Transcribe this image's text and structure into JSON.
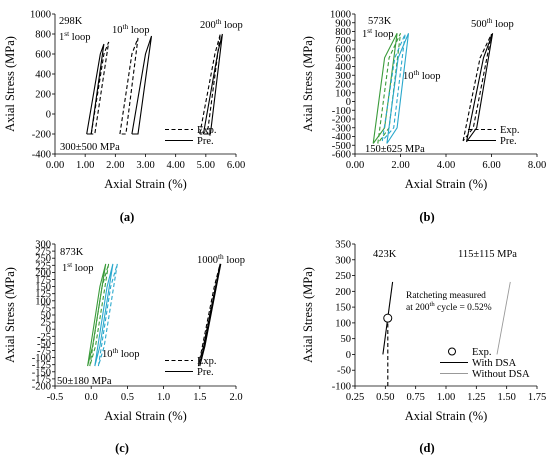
{
  "chart_data": [
    {
      "type": "line",
      "panel_label": "(a)",
      "temperature": "298K",
      "loading": "300±500 MPa",
      "xlabel": "Axial Strain (%)",
      "ylabel": "Axial Stress (MPa)",
      "xlim": [
        0,
        6
      ],
      "ylim": [
        -400,
        1000
      ],
      "xticks": [
        "0.00",
        "1.00",
        "2.00",
        "3.00",
        "4.00",
        "5.00",
        "6.00"
      ],
      "yticks": [
        "-400",
        "-200",
        "0",
        "200",
        "400",
        "600",
        "800",
        "1000"
      ],
      "loop_labels": [
        {
          "base": "1",
          "sup": "st",
          "rest": " loop"
        },
        {
          "base": "10",
          "sup": "th",
          "rest": " loop"
        },
        {
          "base": "200",
          "sup": "th",
          "rest": " loop"
        }
      ],
      "legend": [
        {
          "label": "Exp.",
          "style": "dashed"
        },
        {
          "label": "Pre.",
          "style": "solid"
        }
      ],
      "series": [
        {
          "style": "solid",
          "color": "#000000",
          "x": [
            1.05,
            1.5,
            1.62,
            1.2,
            1.05
          ],
          "y": [
            -200,
            600,
            700,
            -200,
            -200
          ]
        },
        {
          "style": "dashed",
          "color": "#000000",
          "x": [
            1.2,
            1.62,
            1.78,
            1.32,
            1.2
          ],
          "y": [
            -200,
            600,
            720,
            -200,
            -200
          ]
        },
        {
          "style": "dashed",
          "color": "#000000",
          "x": [
            2.15,
            2.55,
            2.75,
            2.35,
            2.15
          ],
          "y": [
            -200,
            600,
            760,
            -200,
            -200
          ]
        },
        {
          "style": "solid",
          "color": "#000000",
          "x": [
            2.55,
            3.0,
            3.2,
            2.75,
            2.55
          ],
          "y": [
            -200,
            600,
            780,
            -200,
            -200
          ]
        },
        {
          "style": "dashed",
          "color": "#000000",
          "x": [
            4.8,
            5.3,
            5.48,
            5.05,
            4.8
          ],
          "y": [
            -200,
            600,
            800,
            -200,
            -200
          ]
        },
        {
          "style": "solid",
          "color": "#000000",
          "x": [
            4.92,
            5.4,
            5.55,
            5.15,
            4.92
          ],
          "y": [
            -200,
            620,
            800,
            -200,
            -200
          ]
        }
      ]
    },
    {
      "type": "line",
      "panel_label": "(b)",
      "temperature": "573K",
      "loading": "150±625 MPa",
      "xlabel": "Axial Strain (%)",
      "ylabel": "Axial Stress (MPa)",
      "xlim": [
        0,
        8
      ],
      "ylim": [
        -600,
        1000
      ],
      "xticks": [
        "0.00",
        "2.00",
        "4.00",
        "6.00",
        "8.00"
      ],
      "yticks": [
        "-600",
        "-500",
        "-400",
        "-300",
        "-200",
        "-100",
        "0",
        "100",
        "200",
        "300",
        "400",
        "500",
        "600",
        "700",
        "800",
        "900",
        "1000"
      ],
      "loop_labels": [
        {
          "base": "1",
          "sup": "st",
          "rest": " loop"
        },
        {
          "base": "10",
          "sup": "th",
          "rest": " loop"
        },
        {
          "base": "500",
          "sup": "th",
          "rest": " loop"
        }
      ],
      "legend": [
        {
          "label": "Exp.",
          "style": "dashed"
        },
        {
          "label": "Pre.",
          "style": "solid"
        }
      ],
      "series": [
        {
          "style": "solid",
          "color": "#3a9b3a",
          "x": [
            0.8,
            1.3,
            1.85,
            1.3,
            0.8
          ],
          "y": [
            -480,
            500,
            780,
            -300,
            -480
          ]
        },
        {
          "style": "dashed",
          "color": "#3a9b3a",
          "x": [
            1.0,
            1.5,
            2.0,
            1.5,
            1.0
          ],
          "y": [
            -480,
            500,
            780,
            -300,
            -480
          ]
        },
        {
          "style": "solid",
          "color": "#29a8cc",
          "x": [
            1.4,
            1.9,
            2.35,
            1.85,
            1.4
          ],
          "y": [
            -480,
            500,
            780,
            -300,
            -480
          ]
        },
        {
          "style": "dashed",
          "color": "#29a8cc",
          "x": [
            1.2,
            1.75,
            2.2,
            1.7,
            1.2
          ],
          "y": [
            -450,
            500,
            770,
            -300,
            -450
          ]
        },
        {
          "style": "dashed",
          "color": "#000000",
          "x": [
            4.75,
            5.5,
            6.0,
            5.2,
            4.75
          ],
          "y": [
            -450,
            500,
            770,
            -300,
            -450
          ]
        },
        {
          "style": "solid",
          "color": "#000000",
          "x": [
            4.9,
            5.65,
            6.05,
            5.35,
            4.9
          ],
          "y": [
            -460,
            500,
            780,
            -300,
            -460
          ]
        }
      ]
    },
    {
      "type": "line",
      "panel_label": "(c)",
      "temperature": "873K",
      "loading": "50±180 MPa",
      "xlabel": "Axial Strain (%)",
      "ylabel": "Axial Stress (MPa)",
      "xlim": [
        -0.5,
        2.0
      ],
      "ylim": [
        -200,
        300
      ],
      "xticks": [
        "-0.5",
        "0.0",
        "0.5",
        "1.0",
        "1.5",
        "2.0"
      ],
      "yticks": [
        "-200",
        "-175",
        "-150",
        "-125",
        "-100",
        "-75",
        "-50",
        "-25",
        "0",
        "25",
        "50",
        "75",
        "100",
        "125",
        "150",
        "175",
        "200",
        "225",
        "250",
        "275",
        "300"
      ],
      "loop_labels": [
        {
          "base": "1",
          "sup": "st",
          "rest": " loop"
        },
        {
          "base": "10",
          "sup": "th",
          "rest": " loop"
        },
        {
          "base": "1000",
          "sup": "th",
          "rest": " loop"
        }
      ],
      "legend": [
        {
          "label": "Exp.",
          "style": "dashed"
        },
        {
          "label": "Pre.",
          "style": "solid"
        }
      ],
      "series": [
        {
          "style": "solid",
          "color": "#3a9b3a",
          "x": [
            -0.05,
            0.12,
            0.2,
            0.02,
            -0.05
          ],
          "y": [
            -130,
            150,
            230,
            -60,
            -130
          ]
        },
        {
          "style": "dashed",
          "color": "#3a9b3a",
          "x": [
            -0.02,
            0.15,
            0.24,
            0.06,
            -0.02
          ],
          "y": [
            -130,
            150,
            230,
            -60,
            -130
          ]
        },
        {
          "style": "solid",
          "color": "#29a8cc",
          "x": [
            0.05,
            0.22,
            0.3,
            0.12,
            0.05
          ],
          "y": [
            -130,
            150,
            230,
            -60,
            -130
          ]
        },
        {
          "style": "dashed",
          "color": "#29a8cc",
          "x": [
            0.1,
            0.27,
            0.36,
            0.18,
            0.1
          ],
          "y": [
            -130,
            150,
            230,
            -60,
            -130
          ]
        },
        {
          "style": "dashed",
          "color": "#000000",
          "x": [
            1.48,
            1.7,
            1.78,
            1.55,
            1.48
          ],
          "y": [
            -130,
            150,
            230,
            -60,
            -130
          ]
        },
        {
          "style": "solid",
          "color": "#000000",
          "x": [
            1.5,
            1.72,
            1.79,
            1.57,
            1.5
          ],
          "y": [
            -130,
            150,
            230,
            -60,
            -130
          ]
        }
      ]
    },
    {
      "type": "line",
      "panel_label": "(d)",
      "temperature": "423K",
      "loading": "115±115 MPa",
      "xlabel": "Axial Strain (%)",
      "ylabel": "Axial Stress (MPa)",
      "xlim": [
        0.25,
        1.75
      ],
      "ylim": [
        -100,
        350
      ],
      "xticks": [
        "0.25",
        "0.50",
        "0.75",
        "1.00",
        "1.25",
        "1.50",
        "1.75"
      ],
      "yticks": [
        "-100",
        "-50",
        "0",
        "50",
        "100",
        "150",
        "200",
        "250",
        "300",
        "350"
      ],
      "annotation": {
        "line1": "Ratcheting measured",
        "line2_base": "at 200",
        "line2_sup": "th",
        "line2_rest": " cycle = 0.52%"
      },
      "legend": [
        {
          "label": "Exp.",
          "style": "marker"
        },
        {
          "label": "With DSA",
          "style": "solid"
        },
        {
          "label": "Without DSA",
          "style": "gray"
        }
      ],
      "points": [
        {
          "x": 0.52,
          "y": 115
        }
      ],
      "series": [
        {
          "style": "solid",
          "color": "#000000",
          "x": [
            0.48,
            0.56
          ],
          "y": [
            0,
            230
          ]
        },
        {
          "style": "dashed",
          "color": "#000000",
          "x": [
            0.52,
            0.52
          ],
          "y": [
            -100,
            115
          ]
        },
        {
          "style": "gray",
          "color": "#999999",
          "x": [
            1.42,
            1.53
          ],
          "y": [
            0,
            230
          ]
        }
      ]
    }
  ]
}
